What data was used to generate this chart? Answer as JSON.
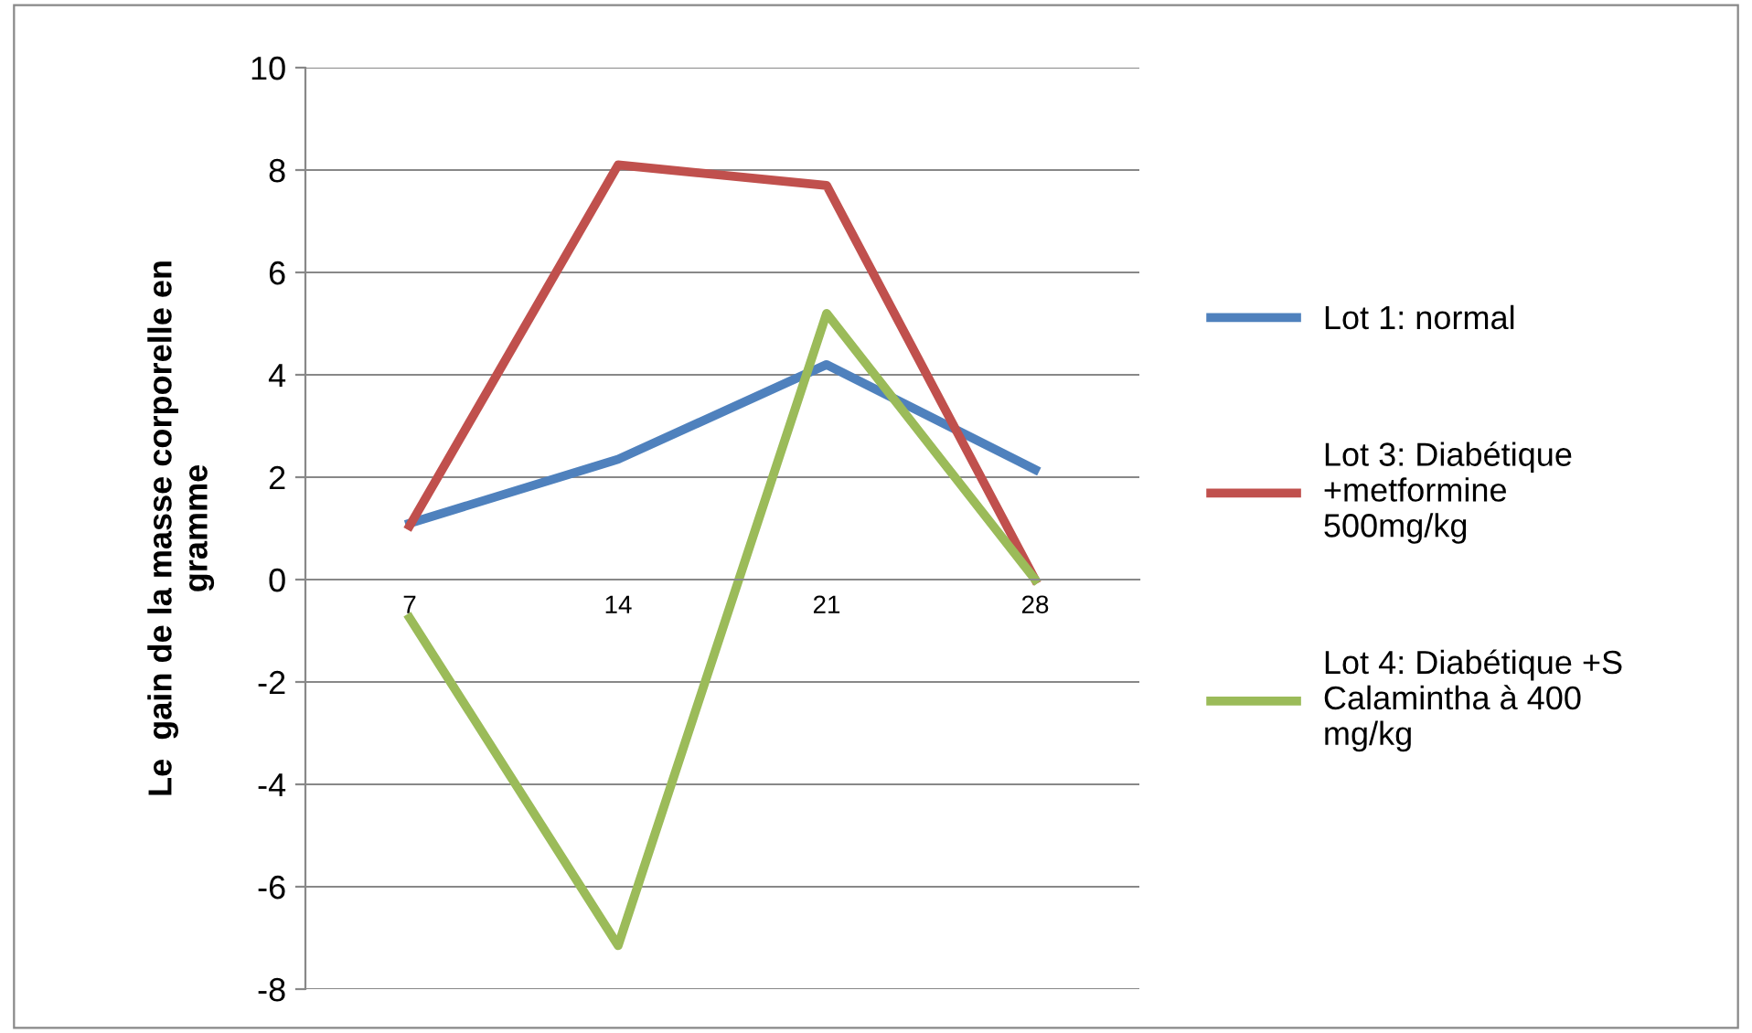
{
  "chart_data": {
    "type": "line",
    "ylabel": "Le  gain de la masse corporelle en\ngramme",
    "categories": [
      "7",
      "14",
      "21",
      "28"
    ],
    "series": [
      {
        "name": "Lot 1: normal",
        "color": "#4f81bd",
        "values": [
          1.1,
          2.35,
          4.2,
          2.15
        ]
      },
      {
        "name": "Lot 3: Diabétique\n+metformine\n500mg/kg",
        "color": "#c0504d",
        "values": [
          1.05,
          8.1,
          7.7,
          0
        ]
      },
      {
        "name": "Lot 4: Diabétique +S\nCalamintha à 400\nmg/kg",
        "color": "#9bbb59",
        "values": [
          -0.75,
          -7.15,
          5.2,
          0
        ]
      }
    ],
    "ylim": [
      -8,
      10
    ],
    "yticks": [
      -8,
      -6,
      -4,
      -2,
      0,
      2,
      4,
      6,
      8,
      10
    ],
    "grid": "y",
    "legend": "right",
    "marker": "none",
    "line_style": "solid"
  }
}
